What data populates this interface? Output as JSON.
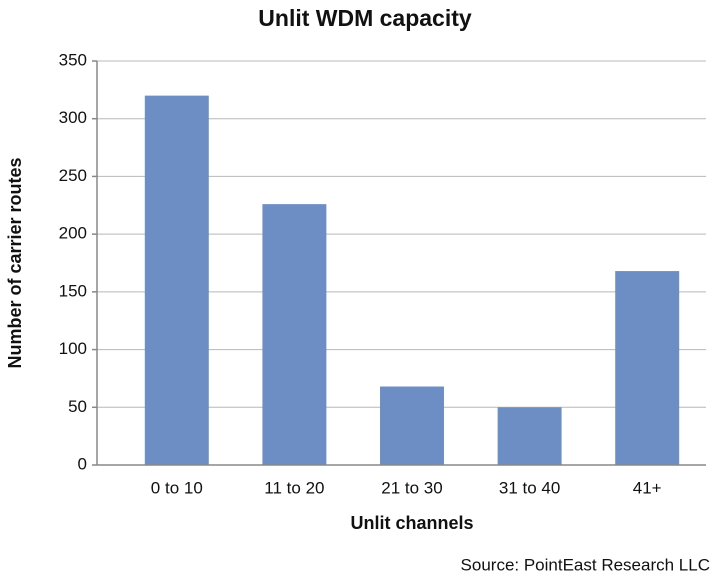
{
  "chart_data": {
    "type": "bar",
    "title": "Unlit WDM capacity",
    "x_label": "Unlit channels",
    "y_label": "Number of carrier routes",
    "source": "Source: PointEast Research LLC",
    "categories": [
      "0 to 10",
      "11 to 20",
      "21 to 30",
      "31 to 40",
      "41+"
    ],
    "values": [
      320,
      226,
      68,
      50,
      168
    ],
    "color": "#6d8ec4",
    "ylim": [
      0,
      350
    ],
    "yticks": [
      0,
      50,
      100,
      150,
      200,
      250,
      300,
      350
    ],
    "grid": true
  }
}
